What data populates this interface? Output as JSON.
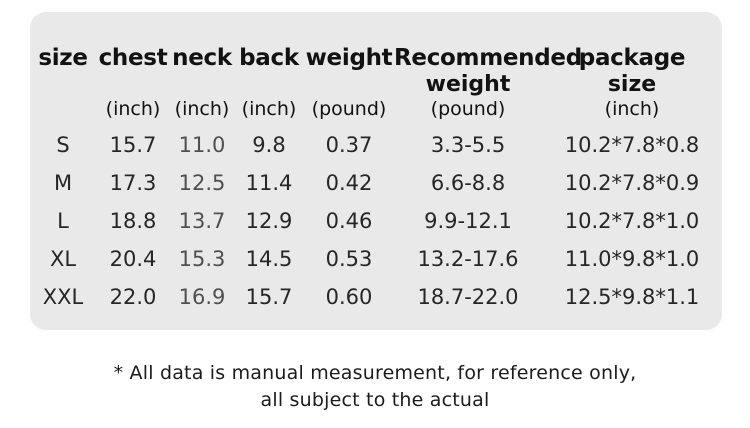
{
  "colors": {
    "page-bg": "#ffffff",
    "panel-bg": "#e9e9e9",
    "header-text": "#121212",
    "data-text": "#262626",
    "neck-text": "#4f4f4f",
    "footnote-text": "#1b1b1b"
  },
  "chart_data": {
    "type": "table",
    "columns": [
      {
        "label": "size",
        "label2": "",
        "unit": ""
      },
      {
        "label": "chest",
        "label2": "",
        "unit": "(inch)"
      },
      {
        "label": "neck",
        "label2": "",
        "unit": "(inch)"
      },
      {
        "label": "back",
        "label2": "",
        "unit": "(inch)"
      },
      {
        "label": "weight",
        "label2": "",
        "unit": "(pound)"
      },
      {
        "label": "Recommended",
        "label2": "weight",
        "unit": "(pound)"
      },
      {
        "label": "package",
        "label2": "size",
        "unit": "(inch)"
      }
    ],
    "rows": [
      [
        "S",
        "15.7",
        "11.0",
        "9.8",
        "0.37",
        "3.3-5.5",
        "10.2*7.8*0.8"
      ],
      [
        "M",
        "17.3",
        "12.5",
        "11.4",
        "0.42",
        "6.6-8.8",
        "10.2*7.8*0.9"
      ],
      [
        "L",
        "18.8",
        "13.7",
        "12.9",
        "0.46",
        "9.9-12.1",
        "10.2*7.8*1.0"
      ],
      [
        "XL",
        "20.4",
        "15.3",
        "14.5",
        "0.53",
        "13.2-17.6",
        "11.0*9.8*1.0"
      ],
      [
        "XXL",
        "22.0",
        "16.9",
        "15.7",
        "0.60",
        "18.7-22.0",
        "12.5*9.8*1.1"
      ]
    ]
  },
  "footnote": {
    "line1": "* All data is manual measurement, for reference only,",
    "line2": "all subject to the actual"
  }
}
